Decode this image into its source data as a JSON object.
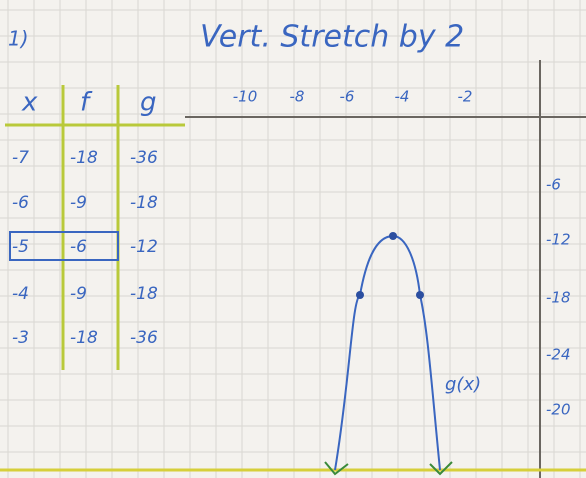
{
  "header": {
    "number": "1)",
    "title": "Vert. Stretch by 2"
  },
  "table": {
    "columns": [
      "x",
      "f",
      "g"
    ],
    "rows": [
      [
        -7,
        -18,
        -36
      ],
      [
        -6,
        -9,
        -18
      ],
      [
        -5,
        -6,
        -12
      ],
      [
        -4,
        -9,
        -18
      ],
      [
        -3,
        -18,
        -36
      ]
    ]
  },
  "graph": {
    "x_labels": [
      "-10",
      "-8",
      "-6",
      "-4",
      "-2"
    ],
    "y_labels": [
      "-6",
      "-12",
      "-18",
      "-24",
      "-20"
    ],
    "curve_label": "g(x)"
  }
}
